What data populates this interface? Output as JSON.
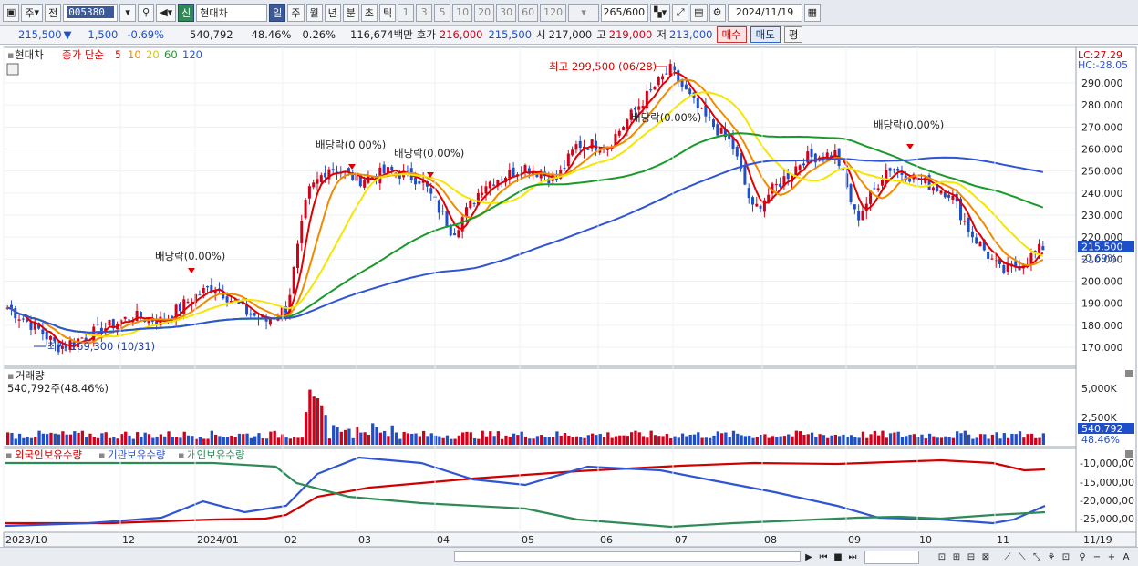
{
  "toolbar": {
    "period_unit": "주",
    "prev_label": "전",
    "code": "005380",
    "stock_badge": "신",
    "stock_name": "현대차",
    "periods": [
      "일",
      "주",
      "월",
      "년",
      "분",
      "초",
      "틱"
    ],
    "active_period": "일",
    "intervals": [
      "1",
      "3",
      "5",
      "10",
      "20",
      "30",
      "60",
      "120"
    ],
    "count": "265",
    "count_max": "/600",
    "date": "2024/11/19"
  },
  "info": {
    "price": "215,500",
    "change": "1,500",
    "change_pct": "-0.69%",
    "volume": "540,792",
    "volume_pct": "48.46%",
    "turnover_pct": "0.26%",
    "amount": "116,674백만",
    "quote_label": "호가",
    "ask": "216,000",
    "bid": "215,500",
    "open_label": "시",
    "open": "217,000",
    "high_label": "고",
    "high": "219,000",
    "low_label": "저",
    "low": "213,000",
    "buy_button": "매수",
    "sell_button": "매도",
    "eval_button": "평"
  },
  "price_panel": {
    "legend_name": "현대차",
    "legend_type": "종가 단순",
    "ma_labels": [
      "5",
      "10",
      "20",
      "60",
      "120"
    ],
    "lc": "LC:27.29",
    "hc": "HC:-28.05",
    "current_price_label": "215,500",
    "current_change_label": "-0.69%",
    "y_ticks": [
      "290,000",
      "280,000",
      "270,000",
      "260,000",
      "250,000",
      "240,000",
      "230,000",
      "220,000",
      "210,000",
      "200,000",
      "190,000",
      "180,000",
      "170,000"
    ],
    "high_marker": "최고 299,500 (06/28)",
    "low_marker": "최저 169,300 (10/31)",
    "dividend_markers": [
      "배당락(0.00%)",
      "배당락(0.00%)",
      "배당락(0.00%)",
      "배당락(0.00%)",
      "배당락(0.00%)"
    ]
  },
  "volume_panel": {
    "title": "거래량",
    "value": "540,792주(48.46%)",
    "y_ticks": [
      "5,000K",
      "2,500K"
    ],
    "current_label": "540,792",
    "current_pct": "48.46%"
  },
  "holding_panel": {
    "series_labels": [
      "외국인보유수량",
      "기관보유수량",
      "개인보유수량"
    ],
    "y_ticks": [
      "-10,000,00",
      "-15,000,00",
      "-20,000,00",
      "-25,000,00"
    ]
  },
  "x_axis": {
    "labels": [
      "2023/10",
      "12",
      "2024/01",
      "02",
      "03",
      "04",
      "05",
      "06",
      "07",
      "08",
      "09",
      "10",
      "11"
    ],
    "end_label": "11/19"
  },
  "colors": {
    "up": "#d0021b",
    "down": "#1f4fc8",
    "ma5": "#e00000",
    "ma10": "#f08a00",
    "ma20": "#f5e600",
    "ma60": "#1a9a2a",
    "ma120": "#2f55d4",
    "foreign": "#d00000",
    "institution": "#2f55d4",
    "individual": "#2e8b57"
  }
}
